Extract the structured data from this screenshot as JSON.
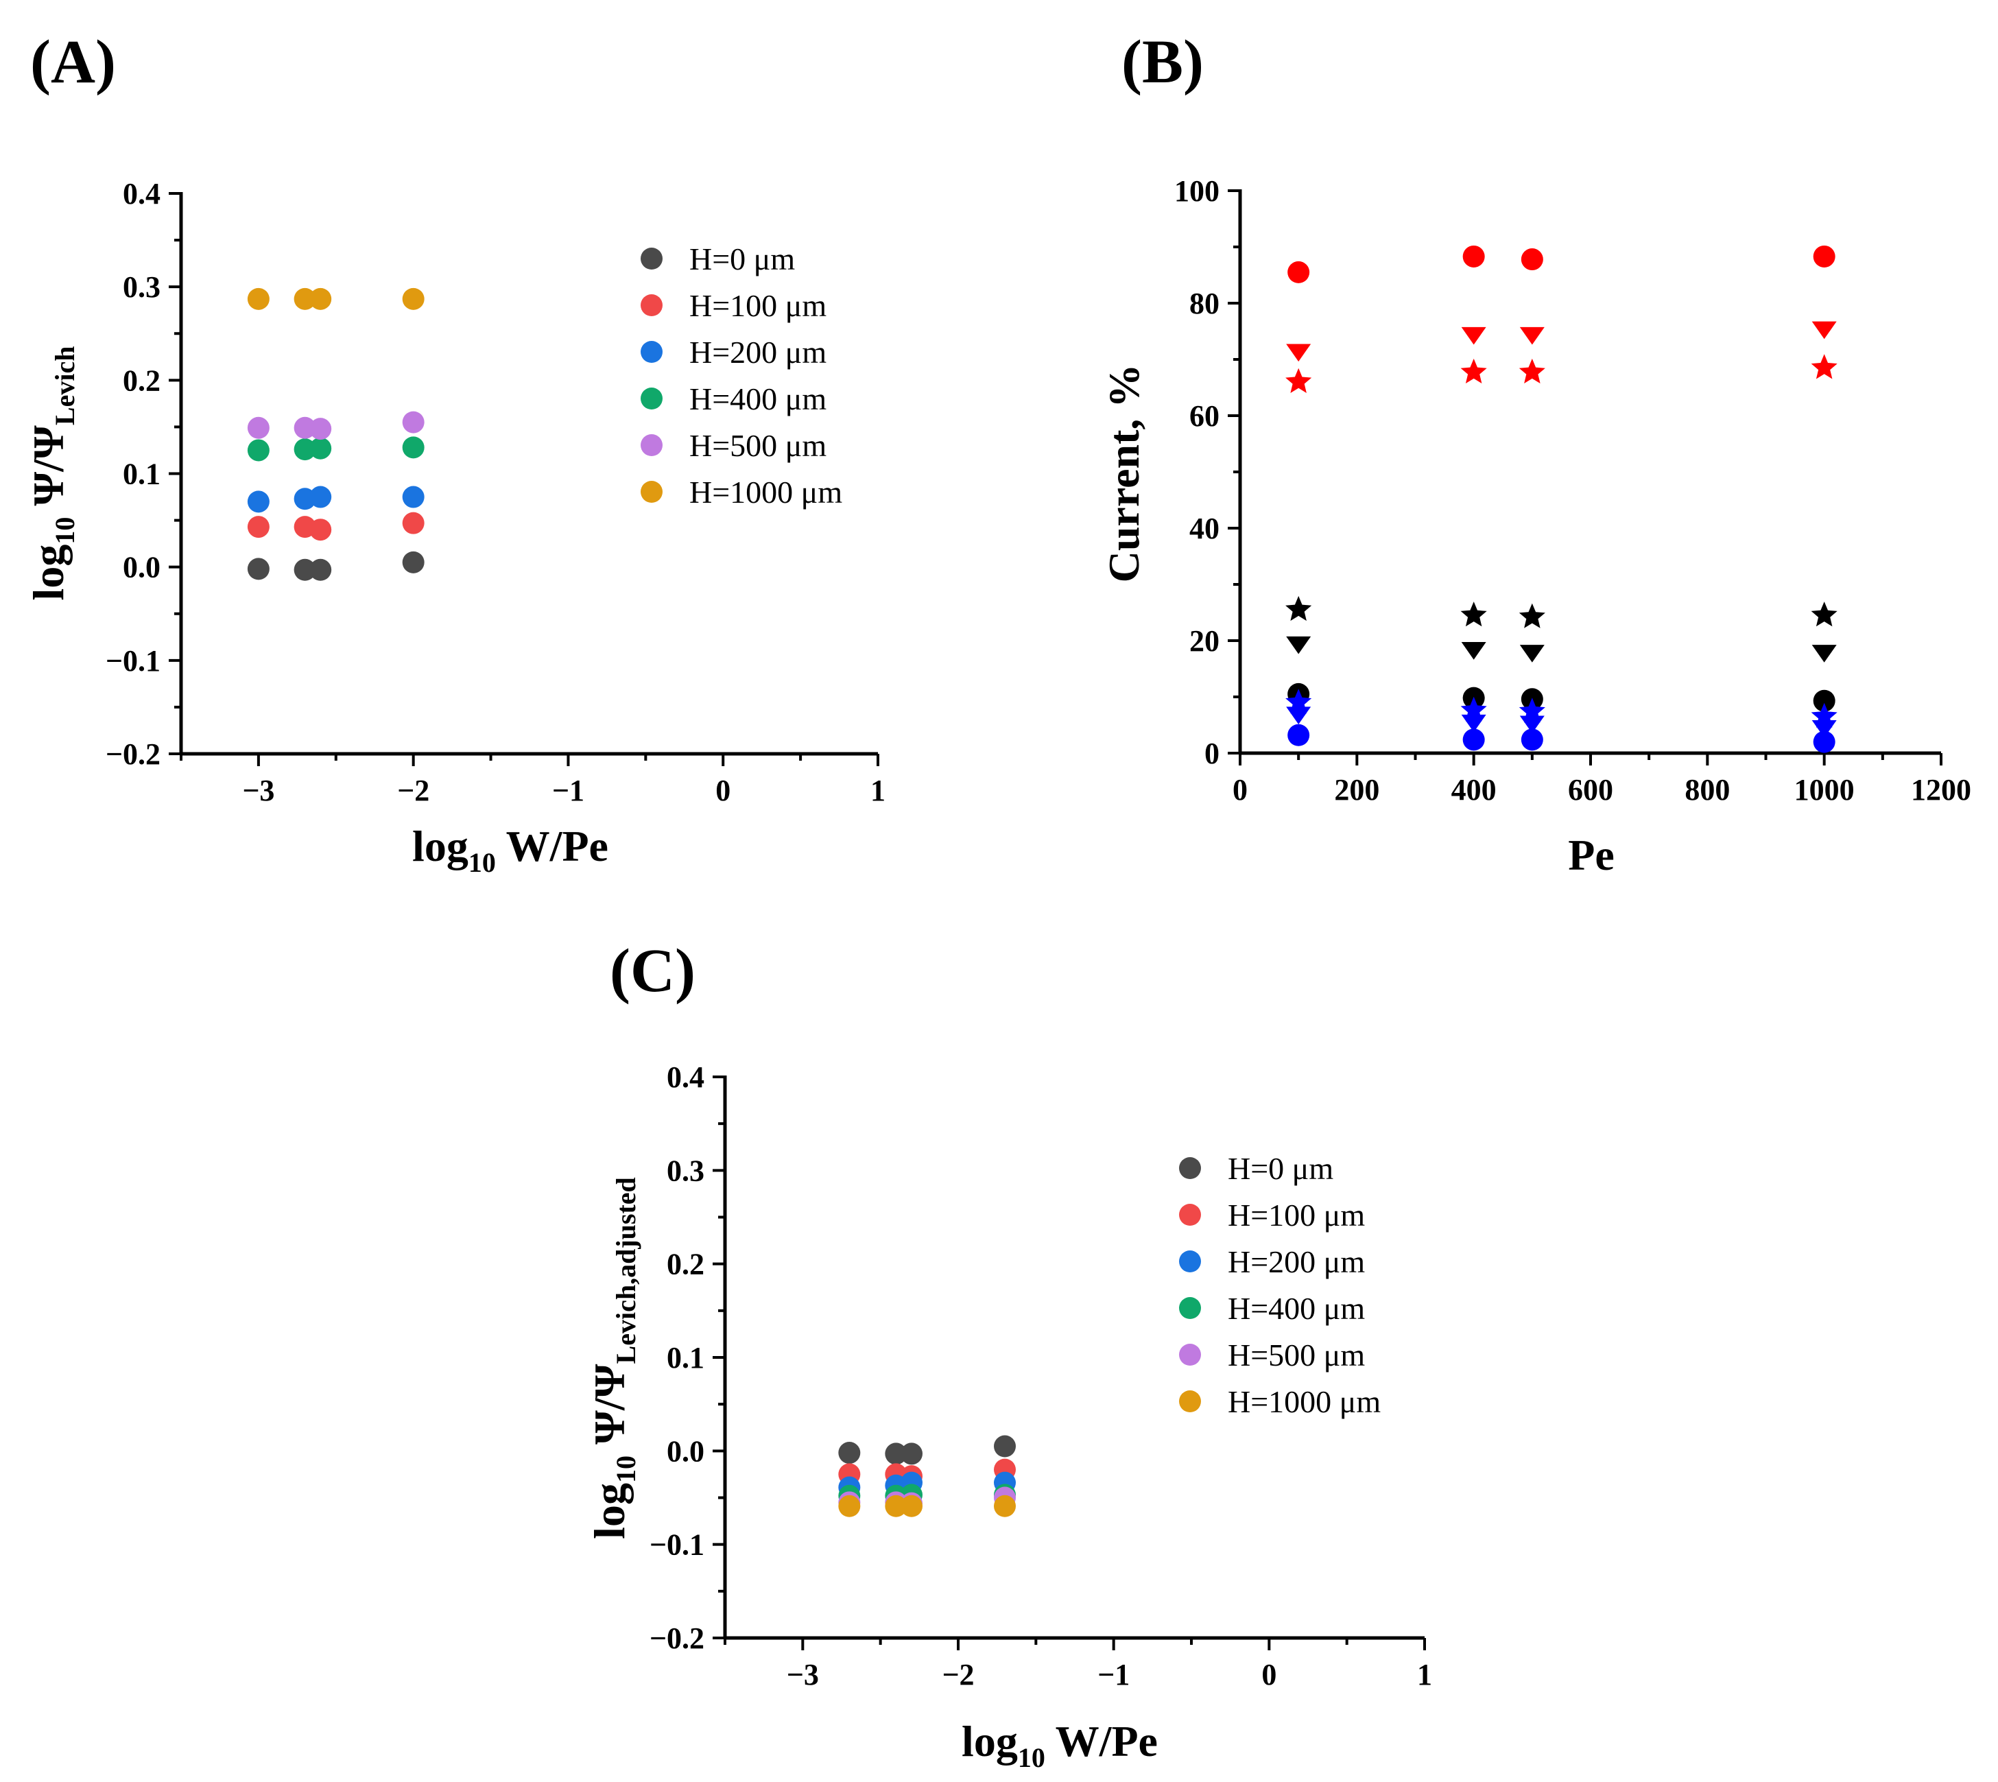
{
  "chart_data": [
    {
      "id": "A",
      "type": "scatter",
      "panel_label": "(A)",
      "xlim": [
        -3.5,
        1
      ],
      "ylim": [
        -0.2,
        0.4
      ],
      "xticks": [
        -3,
        -2,
        -1,
        0,
        1
      ],
      "xtick_labels": [
        "−3",
        "−2",
        "−1",
        "0",
        "1"
      ],
      "yticks": [
        -0.2,
        -0.1,
        0.0,
        0.1,
        0.2,
        0.3,
        0.4
      ],
      "ytick_labels": [
        "−0.2",
        "−0.1",
        "0.0",
        "0.1",
        "0.2",
        "0.3",
        "0.4"
      ],
      "xlabel": {
        "main": "log",
        "sub": "10",
        "rest": " W/Pe"
      },
      "ylabel": {
        "main": "log",
        "sub": "10",
        "mid": " Ψ/Ψ",
        "sub2": "Levich"
      },
      "legend_position": "top-right",
      "series": [
        {
          "name": "H=0 μm",
          "color": "#4a4a4a",
          "x": [
            -3.0,
            -2.7,
            -2.6,
            -2.0
          ],
          "y": [
            -0.002,
            -0.003,
            -0.003,
            0.005
          ]
        },
        {
          "name": "H=100 μm",
          "color": "#f04848",
          "x": [
            -3.0,
            -2.7,
            -2.6,
            -2.0
          ],
          "y": [
            0.043,
            0.043,
            0.04,
            0.047
          ]
        },
        {
          "name": "H=200 μm",
          "color": "#1a74e0",
          "x": [
            -3.0,
            -2.7,
            -2.6,
            -2.0
          ],
          "y": [
            0.07,
            0.073,
            0.075,
            0.075
          ]
        },
        {
          "name": "H=400 μm",
          "color": "#10a86a",
          "x": [
            -3.0,
            -2.7,
            -2.6,
            -2.0
          ],
          "y": [
            0.125,
            0.126,
            0.127,
            0.128
          ]
        },
        {
          "name": "H=500 μm",
          "color": "#c07ae0",
          "x": [
            -3.0,
            -2.7,
            -2.6,
            -2.0
          ],
          "y": [
            0.149,
            0.149,
            0.148,
            0.155
          ]
        },
        {
          "name": "H=1000 μm",
          "color": "#e09a10",
          "x": [
            -3.0,
            -2.7,
            -2.6,
            -2.0
          ],
          "y": [
            0.287,
            0.287,
            0.287,
            0.287
          ]
        }
      ]
    },
    {
      "id": "B",
      "type": "scatter",
      "panel_label": "(B)",
      "xlim": [
        0,
        1200
      ],
      "ylim": [
        0,
        100
      ],
      "xticks": [
        0,
        200,
        400,
        600,
        800,
        1000,
        1200
      ],
      "xtick_labels": [
        "0",
        "200",
        "400",
        "600",
        "800",
        "1000",
        "1200"
      ],
      "yticks": [
        0,
        20,
        40,
        60,
        80,
        100
      ],
      "ytick_labels": [
        "0",
        "20",
        "40",
        "60",
        "80",
        "100"
      ],
      "xlabel": {
        "main": "Pe"
      },
      "ylabel": {
        "main": "Current, %"
      },
      "series": [
        {
          "marker": "circle",
          "color": "#ff0000",
          "x": [
            100,
            400,
            500,
            1000
          ],
          "y": [
            85.5,
            88.3,
            87.8,
            88.3
          ]
        },
        {
          "marker": "triangle-down",
          "color": "#ff0000",
          "x": [
            100,
            400,
            500,
            1000
          ],
          "y": [
            71.5,
            74.5,
            74.5,
            75.5
          ]
        },
        {
          "marker": "star",
          "color": "#ff0000",
          "x": [
            100,
            400,
            500,
            1000
          ],
          "y": [
            66.0,
            67.7,
            67.7,
            68.5
          ]
        },
        {
          "marker": "star",
          "color": "#000000",
          "x": [
            100,
            400,
            500,
            1000
          ],
          "y": [
            25.5,
            24.5,
            24.2,
            24.5
          ]
        },
        {
          "marker": "triangle-down",
          "color": "#000000",
          "x": [
            100,
            400,
            500,
            1000
          ],
          "y": [
            19.5,
            18.5,
            18.0,
            18.0
          ]
        },
        {
          "marker": "circle",
          "color": "#000000",
          "x": [
            100,
            400,
            500,
            1000
          ],
          "y": [
            10.5,
            9.8,
            9.6,
            9.3
          ]
        },
        {
          "marker": "star",
          "color": "#0000ff",
          "x": [
            100,
            400,
            500,
            1000
          ],
          "y": [
            9.0,
            7.6,
            7.4,
            6.5
          ]
        },
        {
          "marker": "triangle-down",
          "color": "#0000ff",
          "x": [
            100,
            400,
            500,
            1000
          ],
          "y": [
            7.0,
            5.6,
            5.4,
            4.6
          ]
        },
        {
          "marker": "circle",
          "color": "#0000ff",
          "x": [
            100,
            400,
            500,
            1000
          ],
          "y": [
            3.2,
            2.4,
            2.4,
            2.0
          ]
        }
      ]
    },
    {
      "id": "C",
      "type": "scatter",
      "panel_label": "(C)",
      "xlim": [
        -3.5,
        1
      ],
      "ylim": [
        -0.2,
        0.4
      ],
      "xticks": [
        -3,
        -2,
        -1,
        0,
        1
      ],
      "xtick_labels": [
        "−3",
        "−2",
        "−1",
        "0",
        "1"
      ],
      "yticks": [
        -0.2,
        -0.1,
        0.0,
        0.1,
        0.2,
        0.3,
        0.4
      ],
      "ytick_labels": [
        "−0.2",
        "−0.1",
        "0.0",
        "0.1",
        "0.2",
        "0.3",
        "0.4"
      ],
      "xlabel": {
        "main": "log",
        "sub": "10",
        "rest": " W/Pe"
      },
      "ylabel": {
        "main": "log",
        "sub": "10",
        "mid": " Ψ/Ψ",
        "sub2": "Levich,adjusted"
      },
      "legend_position": "top-right",
      "series": [
        {
          "name": "H=0 μm",
          "color": "#4a4a4a",
          "x": [
            -2.7,
            -2.4,
            -2.3,
            -1.7
          ],
          "y": [
            -0.002,
            -0.003,
            -0.003,
            0.005
          ]
        },
        {
          "name": "H=100 μm",
          "color": "#f04848",
          "x": [
            -2.7,
            -2.4,
            -2.3,
            -1.7
          ],
          "y": [
            -0.025,
            -0.025,
            -0.027,
            -0.02
          ]
        },
        {
          "name": "H=200 μm",
          "color": "#1a74e0",
          "x": [
            -2.7,
            -2.4,
            -2.3,
            -1.7
          ],
          "y": [
            -0.039,
            -0.037,
            -0.034,
            -0.034
          ]
        },
        {
          "name": "H=400 μm",
          "color": "#10a86a",
          "x": [
            -2.7,
            -2.4,
            -2.3,
            -1.7
          ],
          "y": [
            -0.048,
            -0.048,
            -0.047,
            -0.047
          ]
        },
        {
          "name": "H=500 μm",
          "color": "#c07ae0",
          "x": [
            -2.7,
            -2.4,
            -2.3,
            -1.7
          ],
          "y": [
            -0.055,
            -0.055,
            -0.056,
            -0.05
          ]
        },
        {
          "name": "H=1000 μm",
          "color": "#e09a10",
          "x": [
            -2.7,
            -2.4,
            -2.3,
            -1.7
          ],
          "y": [
            -0.059,
            -0.059,
            -0.059,
            -0.059
          ]
        }
      ]
    }
  ]
}
